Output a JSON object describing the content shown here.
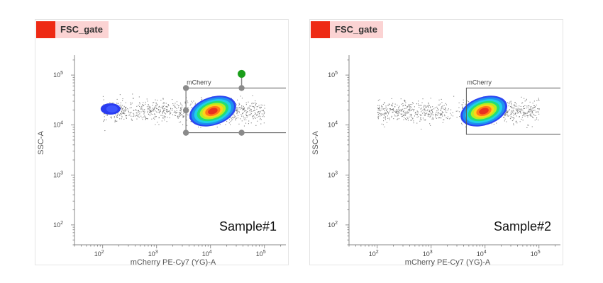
{
  "chart_data": [
    {
      "type": "scatter",
      "panel_tab": "FSC_gate",
      "sample": "Sample#1",
      "xlabel": "mCherry PE-Cy7 (YG)-A",
      "ylabel": "SSC-A",
      "x_scale": "log",
      "y_scale": "log",
      "x_ticks": [
        "10^2",
        "10^3",
        "10^4",
        "10^5"
      ],
      "y_ticks": [
        "10^2",
        "10^3",
        "10^4",
        "10^5"
      ],
      "xlim": [
        30,
        250000
      ],
      "ylim": [
        40,
        250000
      ],
      "gate": {
        "name": "mCherry",
        "x": [
          3500,
          250000
        ],
        "y": [
          7000,
          55000
        ],
        "editable": true
      },
      "populations": [
        {
          "name": "negative",
          "x_center": 140,
          "y_center": 21000,
          "color": "#2a3cf0"
        },
        {
          "name": "positive",
          "x_center": 11000,
          "y_center": 19000,
          "color": "#e0301e"
        }
      ]
    },
    {
      "type": "scatter",
      "panel_tab": "FSC_gate",
      "sample": "Sample#2",
      "xlabel": "mCherry PE-Cy7 (YG)-A",
      "ylabel": "SSC-A",
      "x_scale": "log",
      "y_scale": "log",
      "x_ticks": [
        "10^2",
        "10^3",
        "10^4",
        "10^5"
      ],
      "y_ticks": [
        "10^2",
        "10^3",
        "10^4",
        "10^5"
      ],
      "xlim": [
        30,
        250000
      ],
      "ylim": [
        40,
        250000
      ],
      "gate": {
        "name": "mCherry",
        "x": [
          4500,
          250000
        ],
        "y": [
          6500,
          55000
        ],
        "editable": false
      },
      "populations": [
        {
          "name": "positive",
          "x_center": 9500,
          "y_center": 19000,
          "color": "#e0301e"
        }
      ]
    }
  ],
  "colors": {
    "tab_swatch": "#ee2a14",
    "tab_bg": "#fbd3d3",
    "gate_handle": "#1a9e1a"
  }
}
